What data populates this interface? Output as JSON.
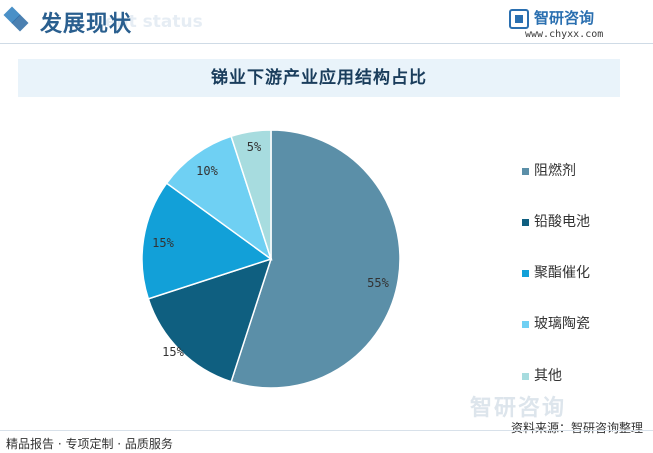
{
  "header": {
    "title": "发展现状",
    "watermark": "ent status",
    "brand_name": "智研咨询",
    "brand_url": "www.chyxx.com"
  },
  "chart_data": {
    "type": "pie",
    "title": "锑业下游产业应用结构占比",
    "categories": [
      "阻燃剂",
      "铅酸电池",
      "聚酯催化",
      "玻璃陶瓷",
      "其他"
    ],
    "values": [
      55,
      15,
      15,
      10,
      5
    ],
    "labels": [
      "55%",
      "15%",
      "15%",
      "10%",
      "5%"
    ],
    "colors": [
      "#5b8fa8",
      "#0f5f80",
      "#12a0d8",
      "#6fd0f3",
      "#a7dcdf"
    ],
    "legend_position": "right"
  },
  "watermark_bottom": "智研咨询",
  "footer": {
    "left": "精品报告 · 专项定制 · 品质服务",
    "right": "资料来源：智研咨询整理"
  }
}
